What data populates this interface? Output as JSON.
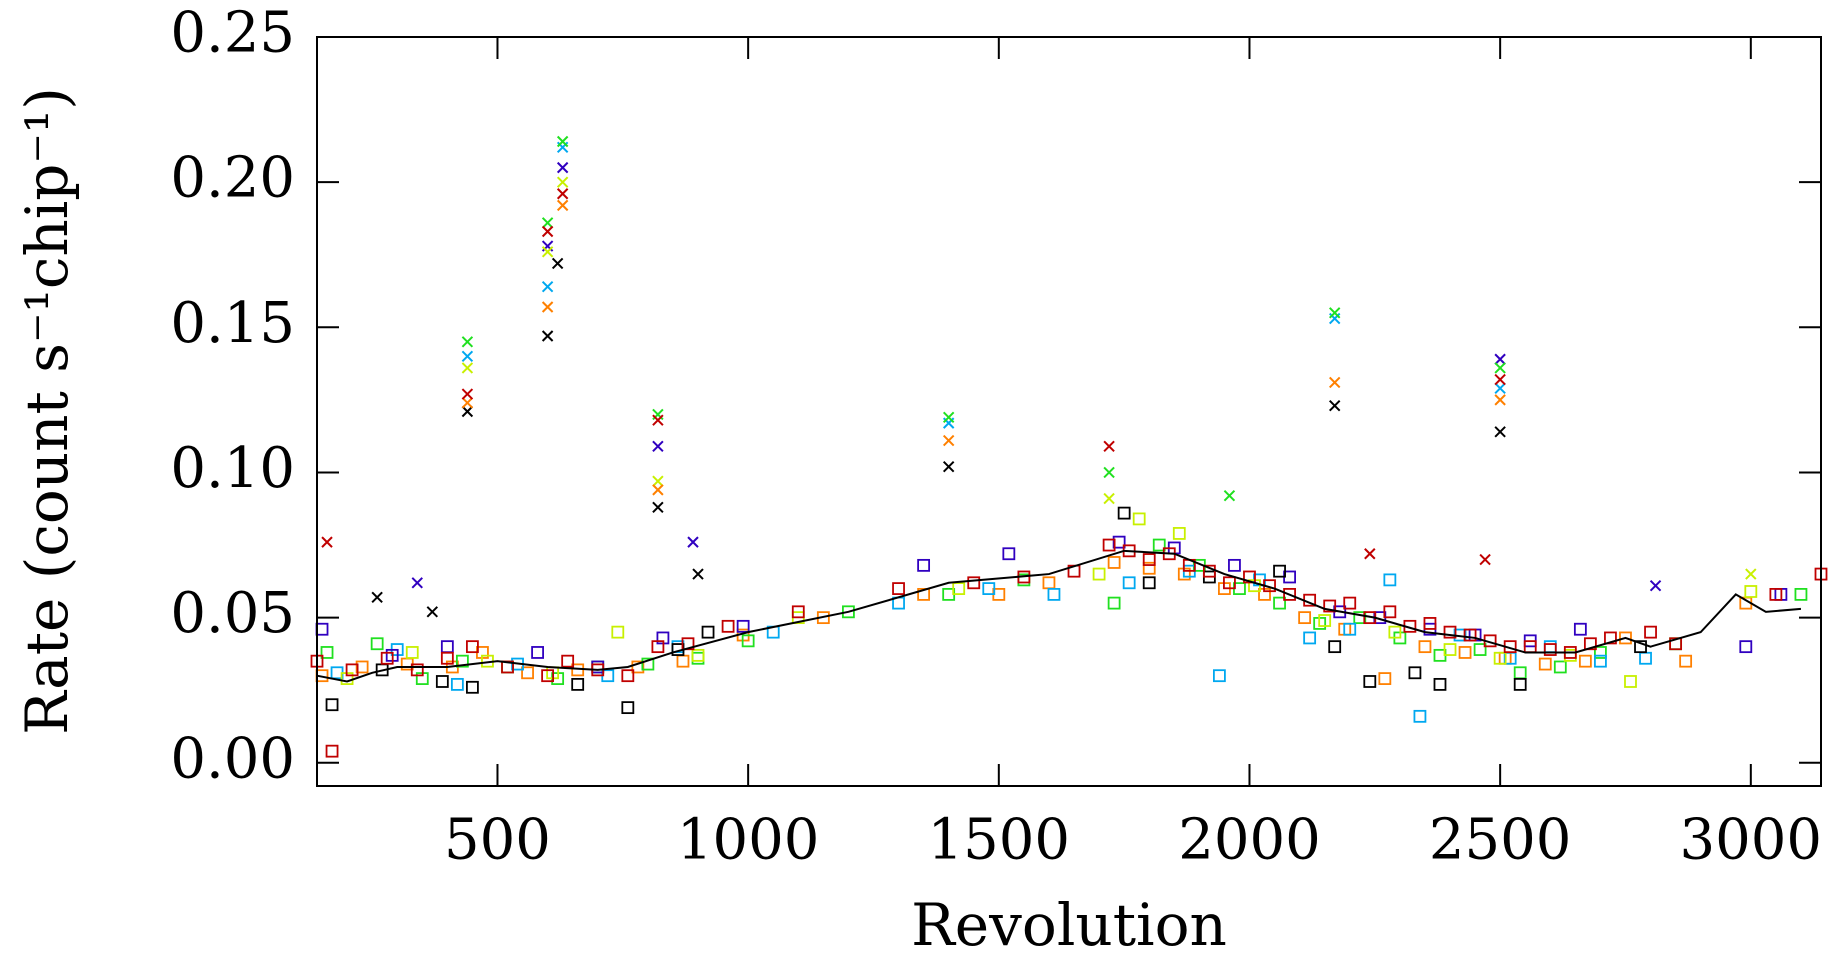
{
  "chart_data": {
    "type": "scatter",
    "x_label": "Revolution",
    "y_label": "Rate (count s⁻¹chip⁻¹)",
    "xlim": [
      140,
      3140
    ],
    "ylim": [
      -0.008,
      0.25
    ],
    "xticks": [
      500,
      1000,
      1500,
      2000,
      2500,
      3000
    ],
    "yticks": [
      {
        "value": 0,
        "label": "0.00"
      },
      {
        "value": 0.05,
        "label": "0.05"
      },
      {
        "value": 0.1,
        "label": "0.10"
      },
      {
        "value": 0.15,
        "label": "0.15"
      },
      {
        "value": 0.2,
        "label": "0.20"
      },
      {
        "value": 0.25,
        "label": "0.25"
      }
    ],
    "series": [
      {
        "marker": "square",
        "color": "#ff8000",
        "x": [
          150,
          230,
          320,
          410,
          470,
          560,
          660,
          780,
          870,
          990,
          1150,
          1350,
          1500,
          1600,
          1730,
          1800,
          1870,
          1950,
          2030,
          2110,
          2190,
          2270,
          2350,
          2430,
          2510,
          2590,
          2670,
          2750,
          2870,
          2990
        ],
        "values": [
          0.03,
          0.033,
          0.034,
          0.033,
          0.038,
          0.031,
          0.032,
          0.033,
          0.035,
          0.044,
          0.05,
          0.058,
          0.058,
          0.062,
          0.069,
          0.067,
          0.065,
          0.06,
          0.058,
          0.05,
          0.046,
          0.029,
          0.04,
          0.038,
          0.036,
          0.034,
          0.035,
          0.043,
          0.035,
          0.055
        ]
      },
      {
        "marker": "square",
        "color": "#20e020",
        "x": [
          160,
          260,
          350,
          430,
          520,
          620,
          700,
          800,
          900,
          1000,
          1200,
          1400,
          1550,
          1730,
          1820,
          1900,
          1980,
          2060,
          2140,
          2220,
          2300,
          2380,
          2460,
          2540,
          2620,
          2700,
          2850,
          3100
        ],
        "values": [
          0.038,
          0.041,
          0.029,
          0.035,
          0.033,
          0.029,
          0.033,
          0.034,
          0.036,
          0.042,
          0.052,
          0.058,
          0.063,
          0.055,
          0.075,
          0.068,
          0.06,
          0.055,
          0.048,
          0.05,
          0.043,
          0.037,
          0.039,
          0.031,
          0.033,
          0.038,
          0.041,
          0.058
        ]
      },
      {
        "marker": "square",
        "color": "#00a8f0",
        "x": [
          180,
          300,
          420,
          540,
          720,
          860,
          1050,
          1300,
          1480,
          1610,
          1760,
          1880,
          1940,
          2020,
          2120,
          2200,
          2280,
          2340,
          2420,
          2520,
          2600,
          2700,
          2790
        ],
        "values": [
          0.031,
          0.039,
          0.027,
          0.034,
          0.03,
          0.04,
          0.045,
          0.055,
          0.06,
          0.058,
          0.062,
          0.066,
          0.03,
          0.063,
          0.043,
          0.046,
          0.063,
          0.016,
          0.044,
          0.036,
          0.04,
          0.035,
          0.036
        ]
      },
      {
        "marker": "square",
        "color": "#3000c0",
        "x": [
          150,
          290,
          400,
          580,
          700,
          830,
          990,
          1350,
          1520,
          1740,
          1850,
          1970,
          2080,
          2180,
          2260,
          2360,
          2450,
          2560,
          2660,
          2990,
          3060
        ],
        "values": [
          0.046,
          0.037,
          0.04,
          0.038,
          0.033,
          0.043,
          0.047,
          0.068,
          0.072,
          0.076,
          0.074,
          0.068,
          0.064,
          0.052,
          0.05,
          0.046,
          0.044,
          0.042,
          0.046,
          0.04,
          0.058
        ]
      },
      {
        "marker": "square",
        "color": "#000000",
        "x": [
          170,
          270,
          390,
          450,
          660,
          760,
          860,
          920,
          1750,
          1800,
          1920,
          2060,
          2170,
          2240,
          2330,
          2380,
          2540,
          2780
        ],
        "values": [
          0.02,
          0.032,
          0.028,
          0.026,
          0.027,
          0.019,
          0.039,
          0.045,
          0.086,
          0.062,
          0.064,
          0.066,
          0.04,
          0.028,
          0.031,
          0.027,
          0.027,
          0.04
        ]
      },
      {
        "marker": "square",
        "color": "#c8f000",
        "x": [
          200,
          330,
          480,
          610,
          740,
          900,
          1100,
          1420,
          1700,
          1780,
          1860,
          2010,
          2150,
          2290,
          2400,
          2500,
          2640,
          2760,
          3000
        ],
        "values": [
          0.029,
          0.038,
          0.035,
          0.031,
          0.045,
          0.037,
          0.05,
          0.06,
          0.065,
          0.084,
          0.079,
          0.061,
          0.049,
          0.045,
          0.039,
          0.036,
          0.037,
          0.028,
          0.059
        ]
      },
      {
        "marker": "square",
        "color": "#c00000",
        "x": [
          140,
          170,
          210,
          280,
          340,
          400,
          450,
          520,
          600,
          640,
          700,
          760,
          820,
          880,
          960,
          1100,
          1300,
          1450,
          1550,
          1650,
          1720,
          1760,
          1800,
          1840,
          1880,
          1920,
          1960,
          2000,
          2040,
          2080,
          2120,
          2160,
          2200,
          2240,
          2280,
          2320,
          2360,
          2400,
          2440,
          2480,
          2520,
          2560,
          2600,
          2640,
          2680,
          2720,
          2800,
          2850,
          3050,
          3140
        ],
        "values": [
          0.035,
          0.004,
          0.032,
          0.036,
          0.032,
          0.036,
          0.04,
          0.033,
          0.03,
          0.035,
          0.032,
          0.03,
          0.04,
          0.041,
          0.047,
          0.052,
          0.06,
          0.062,
          0.064,
          0.066,
          0.075,
          0.073,
          0.07,
          0.072,
          0.068,
          0.066,
          0.062,
          0.064,
          0.061,
          0.058,
          0.056,
          0.054,
          0.055,
          0.05,
          0.052,
          0.047,
          0.048,
          0.045,
          0.044,
          0.042,
          0.04,
          0.04,
          0.039,
          0.038,
          0.041,
          0.043,
          0.045,
          0.041,
          0.058,
          0.065
        ]
      },
      {
        "marker": "x",
        "color": "#000000",
        "x": [
          260,
          370,
          440,
          600,
          620,
          820,
          900,
          1400,
          2170,
          2500
        ],
        "values": [
          0.057,
          0.052,
          0.121,
          0.147,
          0.172,
          0.088,
          0.065,
          0.102,
          0.123,
          0.114
        ]
      },
      {
        "marker": "x",
        "color": "#3000c0",
        "x": [
          340,
          600,
          630,
          820,
          890,
          2500,
          2810
        ],
        "values": [
          0.062,
          0.178,
          0.205,
          0.109,
          0.076,
          0.139,
          0.061
        ]
      },
      {
        "marker": "x",
        "color": "#00a8f0",
        "x": [
          440,
          600,
          630,
          1400,
          2170,
          2500
        ],
        "values": [
          0.14,
          0.164,
          0.212,
          0.117,
          0.153,
          0.129
        ]
      },
      {
        "marker": "x",
        "color": "#20e020",
        "x": [
          440,
          600,
          630,
          820,
          1400,
          1720,
          1960,
          2170,
          2500
        ],
        "values": [
          0.145,
          0.186,
          0.214,
          0.12,
          0.119,
          0.1,
          0.092,
          0.155,
          0.136
        ]
      },
      {
        "marker": "x",
        "color": "#c8f000",
        "x": [
          440,
          600,
          630,
          820,
          1720,
          3000
        ],
        "values": [
          0.136,
          0.176,
          0.2,
          0.097,
          0.091,
          0.065
        ]
      },
      {
        "marker": "x",
        "color": "#ff8000",
        "x": [
          440,
          600,
          630,
          820,
          1400,
          2170,
          2500
        ],
        "values": [
          0.124,
          0.157,
          0.192,
          0.094,
          0.111,
          0.131,
          0.125
        ]
      },
      {
        "marker": "x",
        "color": "#c00000",
        "x": [
          160,
          440,
          600,
          630,
          820,
          1720,
          2240,
          2470,
          2500
        ],
        "values": [
          0.076,
          0.127,
          0.183,
          0.196,
          0.118,
          0.109,
          0.072,
          0.07,
          0.132
        ]
      },
      {
        "marker": "line",
        "color": "#000000",
        "x": [
          140,
          200,
          250,
          300,
          400,
          500,
          600,
          700,
          760,
          850,
          1000,
          1200,
          1400,
          1600,
          1750,
          1850,
          1950,
          2050,
          2150,
          2250,
          2350,
          2450,
          2550,
          2650,
          2750,
          2800,
          2900,
          2970,
          3030,
          3100
        ],
        "values": [
          0.03,
          0.028,
          0.031,
          0.033,
          0.033,
          0.035,
          0.033,
          0.032,
          0.033,
          0.038,
          0.045,
          0.052,
          0.062,
          0.065,
          0.073,
          0.072,
          0.065,
          0.06,
          0.053,
          0.05,
          0.045,
          0.043,
          0.038,
          0.038,
          0.043,
          0.04,
          0.045,
          0.058,
          0.052,
          0.053
        ]
      }
    ]
  }
}
